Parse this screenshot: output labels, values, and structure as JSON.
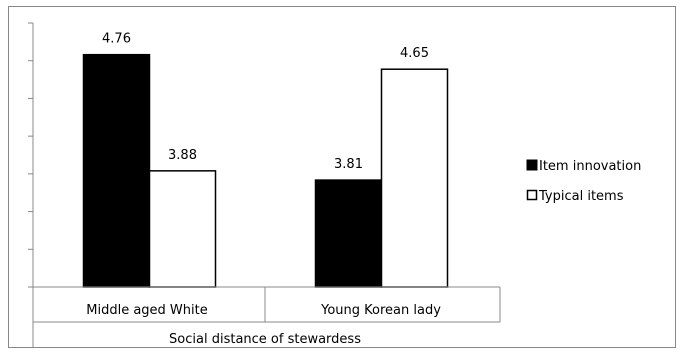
{
  "chart_data": {
    "type": "bar",
    "categories": [
      "Middle aged White",
      "Young Korean lady"
    ],
    "series": [
      {
        "name": "Item innovation",
        "values": [
          4.76,
          3.81
        ],
        "fill": "#000000"
      },
      {
        "name": "Typical items",
        "values": [
          3.88,
          4.65
        ],
        "fill": "#ffffff"
      }
    ],
    "data_labels": [
      [
        "4.76",
        "3.81"
      ],
      [
        "3.88",
        "4.65"
      ]
    ],
    "xlabel": "Social distance of stewardess",
    "ylabel": "",
    "ylim": [
      3.0,
      5.0
    ],
    "y_tick_count": 7,
    "y_tick_labels": "none",
    "grid": false,
    "legend_position": "right"
  }
}
